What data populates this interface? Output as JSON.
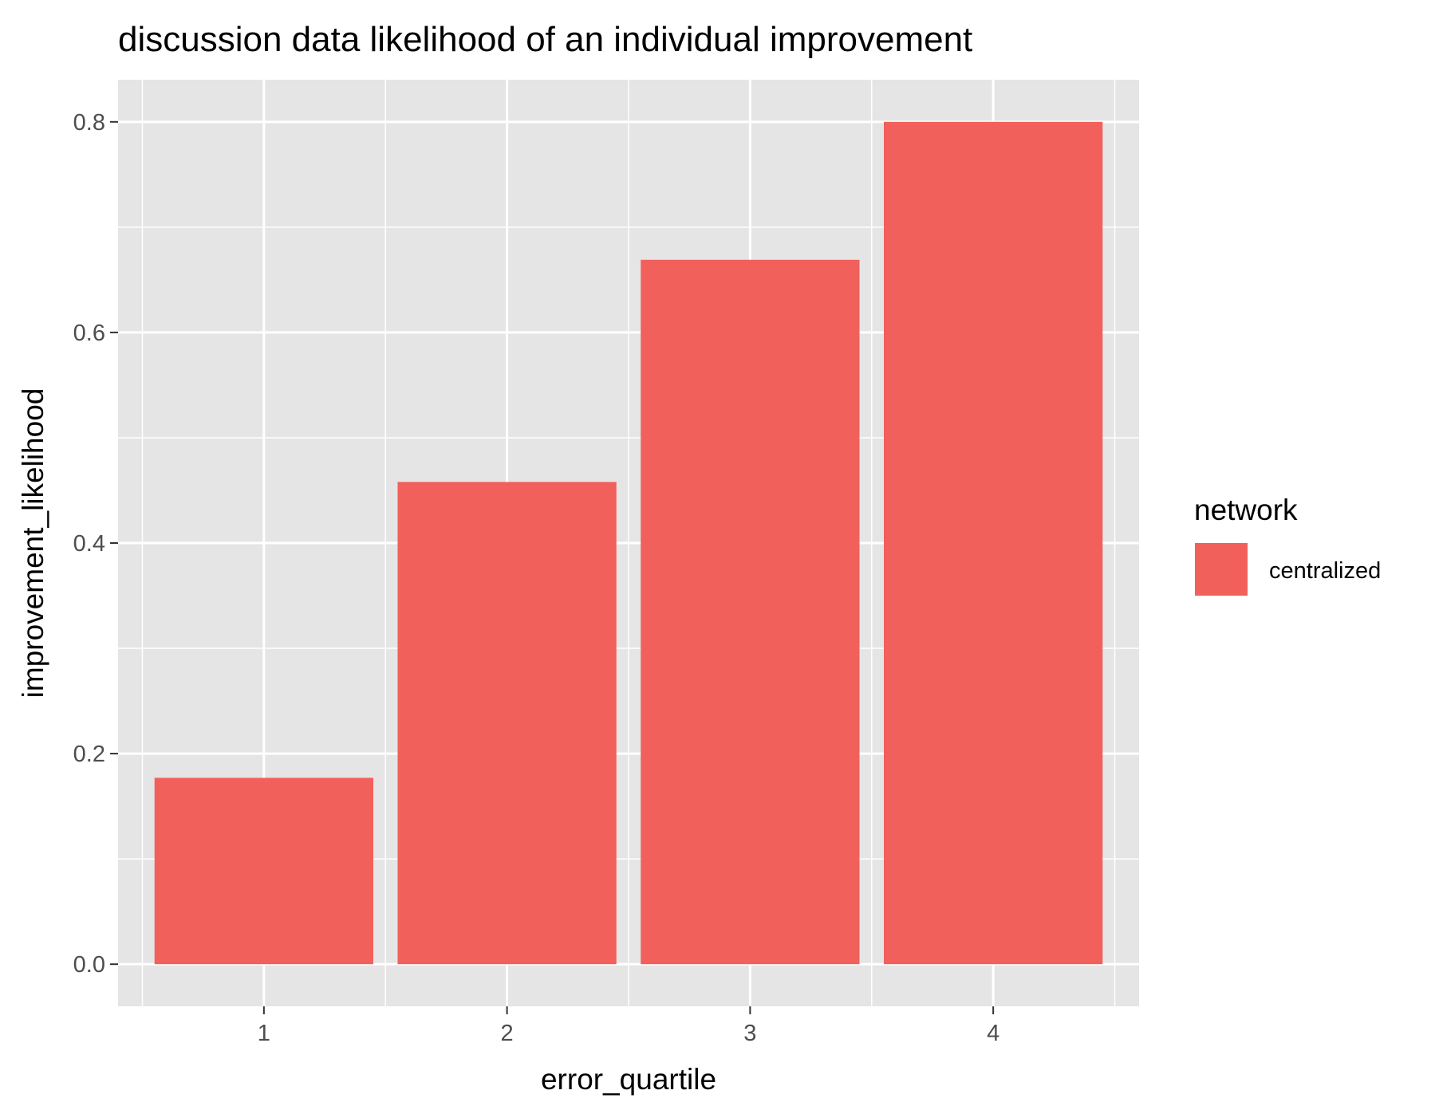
{
  "chart_data": {
    "type": "bar",
    "title": "discussion data likelihood of an individual improvement",
    "xlabel": "error_quartile",
    "ylabel": "improvement_likelihood",
    "categories": [
      "1",
      "2",
      "3",
      "4"
    ],
    "series": [
      {
        "name": "centralized",
        "values": [
          0.177,
          0.458,
          0.669,
          0.8
        ]
      }
    ],
    "ylim": [
      -0.04,
      0.84
    ],
    "y_ticks": [
      0.0,
      0.2,
      0.4,
      0.6,
      0.8
    ],
    "y_tick_labels": [
      "0.0",
      "0.2",
      "0.4",
      "0.6",
      "0.8"
    ],
    "grid": true,
    "legend": {
      "title": "network",
      "position": "right"
    },
    "colors": {
      "panel_background": "#e5e5e5",
      "grid": "#ffffff",
      "bar_fill": "#f2605b",
      "tick_text": "#4d4d4d",
      "tick_mark": "#333333"
    }
  }
}
